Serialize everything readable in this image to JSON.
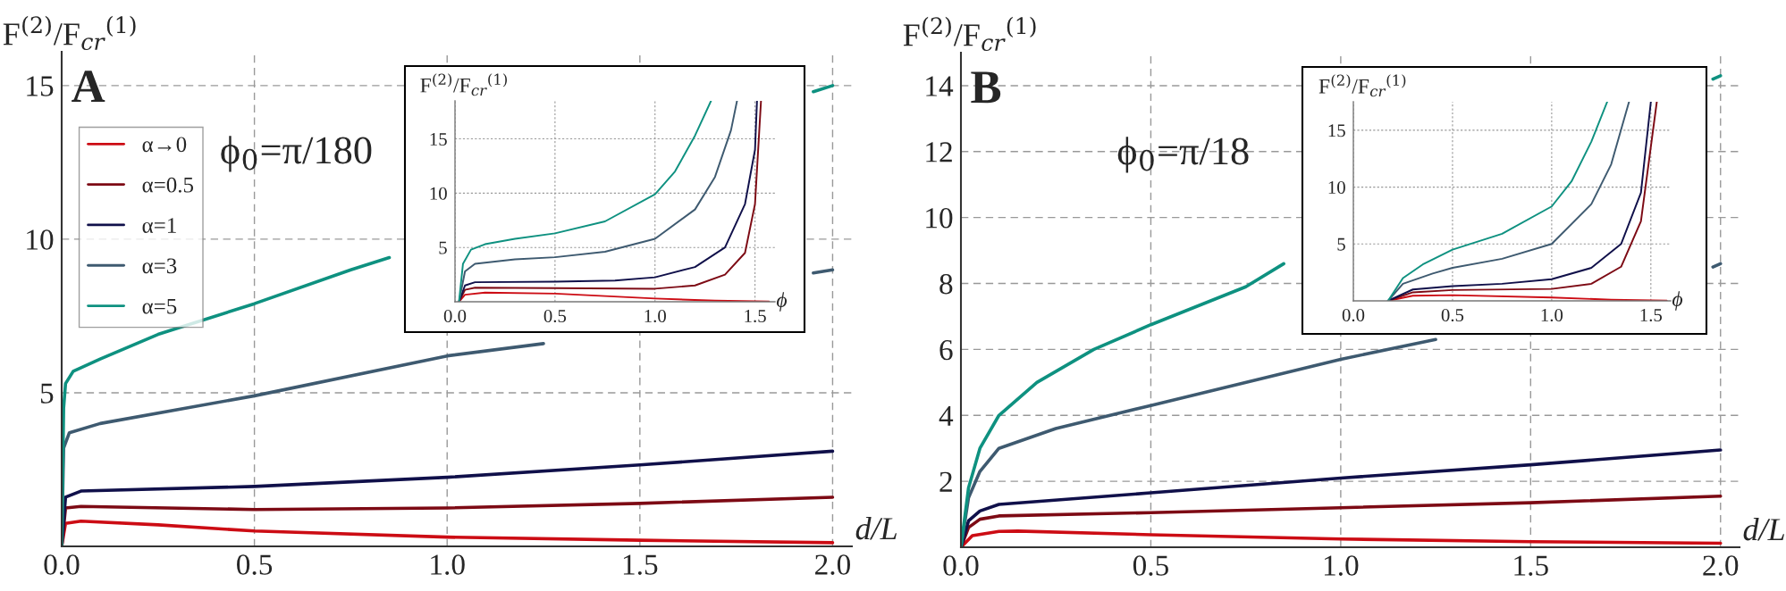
{
  "chart_data": [
    {
      "type": "line",
      "ylabel": "F$^{(2)}$/F$_{cr}$$^{(1)}$",
      "xlabel": "d/L",
      "annotations": [
        "A",
        "ϕ$_{0}$=π/180"
      ],
      "xlim": [
        0,
        2.05
      ],
      "ylim": [
        0,
        16.1
      ],
      "xticks": [
        {
          "value": 0,
          "label": "0.0"
        },
        {
          "value": 0.5,
          "label": "0.5"
        },
        {
          "value": 1.0,
          "label": "1.0"
        },
        {
          "value": 1.5,
          "label": "1.5"
        },
        {
          "value": 2.0,
          "label": "2.0"
        }
      ],
      "yticks": [
        5,
        10,
        15
      ],
      "grid": true,
      "legend": "top left",
      "series": [
        {
          "name": "α→0",
          "color": "#cc0c14",
          "x": [
            0,
            0.01,
            0.05,
            0.25,
            0.5,
            1.0,
            1.5,
            2.0
          ],
          "values": [
            0,
            0.75,
            0.82,
            0.7,
            0.5,
            0.3,
            0.2,
            0.12
          ]
        },
        {
          "name": "α=0.5",
          "color": "#7d0a14",
          "x": [
            0,
            0.01,
            0.05,
            0.5,
            1.0,
            1.5,
            2.0
          ],
          "values": [
            0,
            1.25,
            1.3,
            1.2,
            1.25,
            1.4,
            1.6
          ]
        },
        {
          "name": "α=1",
          "color": "#10104a",
          "x": [
            0,
            0.01,
            0.05,
            0.5,
            1.0,
            1.5,
            2.0
          ],
          "values": [
            0,
            1.6,
            1.8,
            1.95,
            2.25,
            2.65,
            3.1
          ]
        },
        {
          "name": "α=3",
          "color": "#3e5a70",
          "x": [
            0,
            0.005,
            0.02,
            0.1,
            0.5,
            1.0,
            1.25,
            1.6,
            1.95,
            2.0
          ],
          "values": [
            0,
            3.2,
            3.7,
            4.0,
            4.9,
            6.2,
            6.6,
            null,
            8.9,
            9.0
          ]
        },
        {
          "name": "α=5",
          "color": "#0e9180",
          "x": [
            0,
            0.005,
            0.01,
            0.03,
            0.1,
            0.25,
            0.5,
            0.75,
            0.85,
            1.4,
            1.95,
            2.0
          ],
          "values": [
            0,
            4.5,
            5.3,
            5.7,
            6.1,
            6.9,
            7.9,
            9.0,
            9.4,
            null,
            14.8,
            15.0
          ]
        }
      ]
    },
    {
      "type": "line",
      "ylabel": "F$^{(2)}$/F$_{cr}$$^{(1)}$",
      "xlabel": "ϕ",
      "xlim": [
        0,
        1.6
      ],
      "ylim": [
        0,
        18.5
      ],
      "xticks": [
        {
          "value": 0,
          "label": "0.0"
        },
        {
          "value": 0.5,
          "label": "0.5"
        },
        {
          "value": 1.0,
          "label": "1.0"
        },
        {
          "value": 1.5,
          "label": "1.5"
        }
      ],
      "yticks": [
        5,
        10,
        15
      ],
      "grid": true,
      "series": [
        {
          "color": "#cc0c14",
          "x": [
            0.02,
            0.05,
            0.15,
            0.5,
            1.0,
            1.3,
            1.57
          ],
          "values": [
            0,
            0.65,
            0.85,
            0.75,
            0.3,
            0.1,
            0.02
          ]
        },
        {
          "color": "#7d0a14",
          "x": [
            0.02,
            0.05,
            0.1,
            0.5,
            1.0,
            1.2,
            1.35,
            1.45,
            1.5,
            1.53
          ],
          "values": [
            0,
            1.1,
            1.3,
            1.25,
            1.2,
            1.5,
            2.5,
            4.5,
            9,
            18.5
          ]
        },
        {
          "color": "#10104a",
          "x": [
            0.02,
            0.05,
            0.1,
            0.5,
            0.8,
            1.0,
            1.2,
            1.35,
            1.45,
            1.5,
            1.51
          ],
          "values": [
            0,
            1.5,
            1.8,
            1.85,
            1.95,
            2.25,
            3.2,
            5,
            9,
            14,
            18.5
          ]
        },
        {
          "color": "#3e5a70",
          "x": [
            0.02,
            0.05,
            0.1,
            0.3,
            0.5,
            0.75,
            1.0,
            1.2,
            1.3,
            1.38,
            1.41
          ],
          "values": [
            0,
            2.8,
            3.5,
            3.9,
            4.1,
            4.6,
            5.8,
            8.5,
            11.5,
            15.8,
            18.5
          ]
        },
        {
          "color": "#0e9180",
          "x": [
            0.02,
            0.04,
            0.08,
            0.15,
            0.3,
            0.5,
            0.75,
            1.0,
            1.1,
            1.2,
            1.28
          ],
          "values": [
            0,
            3.5,
            4.8,
            5.3,
            5.8,
            6.3,
            7.4,
            9.9,
            12,
            15.3,
            18.5
          ]
        }
      ]
    },
    {
      "type": "line",
      "ylabel": "F$^{(2)}$/F$_{cr}$$^{(1)}$",
      "xlabel": "d/L",
      "annotations": [
        "B",
        "ϕ$_{0}$=π/18"
      ],
      "xlim": [
        0,
        2.05
      ],
      "ylim": [
        0,
        15
      ],
      "xticks": [
        {
          "value": 0,
          "label": "0.0"
        },
        {
          "value": 0.5,
          "label": "0.5"
        },
        {
          "value": 1.0,
          "label": "1.0"
        },
        {
          "value": 1.5,
          "label": "1.5"
        },
        {
          "value": 2.0,
          "label": "2.0"
        }
      ],
      "yticks": [
        2,
        4,
        6,
        8,
        10,
        12,
        14
      ],
      "grid": true,
      "series": [
        {
          "color": "#cc0c14",
          "x": [
            0,
            0.03,
            0.1,
            0.15,
            0.5,
            1.0,
            1.5,
            2.0
          ],
          "values": [
            0,
            0.35,
            0.48,
            0.49,
            0.38,
            0.25,
            0.17,
            0.12
          ]
        },
        {
          "color": "#7d0a14",
          "x": [
            0,
            0.02,
            0.05,
            0.1,
            0.5,
            1.0,
            1.5,
            2.0
          ],
          "values": [
            0,
            0.6,
            0.85,
            0.95,
            1.05,
            1.2,
            1.35,
            1.55
          ]
        },
        {
          "color": "#10104a",
          "x": [
            0,
            0.02,
            0.05,
            0.1,
            0.5,
            1.0,
            1.5,
            2.0
          ],
          "values": [
            0,
            0.8,
            1.1,
            1.3,
            1.65,
            2.1,
            2.5,
            2.95
          ]
        },
        {
          "color": "#3e5a70",
          "x": [
            0,
            0.02,
            0.05,
            0.1,
            0.25,
            0.5,
            1.0,
            1.25,
            1.6,
            1.98,
            2.0
          ],
          "values": [
            0,
            1.5,
            2.3,
            3.0,
            3.6,
            4.3,
            5.7,
            6.3,
            null,
            8.5,
            8.6
          ]
        },
        {
          "color": "#0e9180",
          "x": [
            0,
            0.02,
            0.05,
            0.1,
            0.2,
            0.35,
            0.5,
            0.75,
            0.85,
            1.4,
            1.98,
            2.0
          ],
          "values": [
            0,
            1.8,
            3.0,
            4.0,
            5.0,
            6.0,
            6.75,
            7.9,
            8.6,
            null,
            14.2,
            14.3
          ]
        }
      ]
    },
    {
      "type": "line",
      "ylabel": "F$^{(2)}$/F$_{cr}$$^{(1)}$",
      "xlabel": "ϕ",
      "xlim": [
        0,
        1.6
      ],
      "ylim": [
        0,
        17.5
      ],
      "xticks": [
        {
          "value": 0,
          "label": "0.0"
        },
        {
          "value": 0.5,
          "label": "0.5"
        },
        {
          "value": 1.0,
          "label": "1.0"
        },
        {
          "value": 1.5,
          "label": "1.5"
        }
      ],
      "yticks": [
        5,
        10,
        15
      ],
      "grid": true,
      "series": [
        {
          "color": "#cc0c14",
          "x": [
            0.175,
            0.3,
            0.5,
            1.0,
            1.3,
            1.58
          ],
          "values": [
            0,
            0.45,
            0.5,
            0.3,
            0.1,
            0.02
          ]
        },
        {
          "color": "#7d0a14",
          "x": [
            0.175,
            0.3,
            0.5,
            1.0,
            1.2,
            1.35,
            1.45,
            1.53
          ],
          "values": [
            0,
            0.75,
            0.95,
            1.05,
            1.5,
            3,
            7,
            17.5
          ]
        },
        {
          "color": "#10104a",
          "x": [
            0.175,
            0.3,
            0.5,
            0.75,
            1.0,
            1.2,
            1.35,
            1.45,
            1.5
          ],
          "values": [
            0,
            1.0,
            1.3,
            1.5,
            1.9,
            2.9,
            5,
            9.5,
            17.5
          ]
        },
        {
          "color": "#3e5a70",
          "x": [
            0.175,
            0.25,
            0.4,
            0.5,
            0.75,
            1.0,
            1.2,
            1.3,
            1.39
          ],
          "values": [
            0,
            1.5,
            2.4,
            2.9,
            3.7,
            5.0,
            8.5,
            12,
            17.5
          ]
        },
        {
          "color": "#0e9180",
          "x": [
            0.175,
            0.25,
            0.35,
            0.5,
            0.75,
            1.0,
            1.1,
            1.2,
            1.28
          ],
          "values": [
            0,
            2.0,
            3.2,
            4.5,
            5.9,
            8.3,
            10.5,
            14,
            17.5
          ]
        }
      ]
    }
  ]
}
